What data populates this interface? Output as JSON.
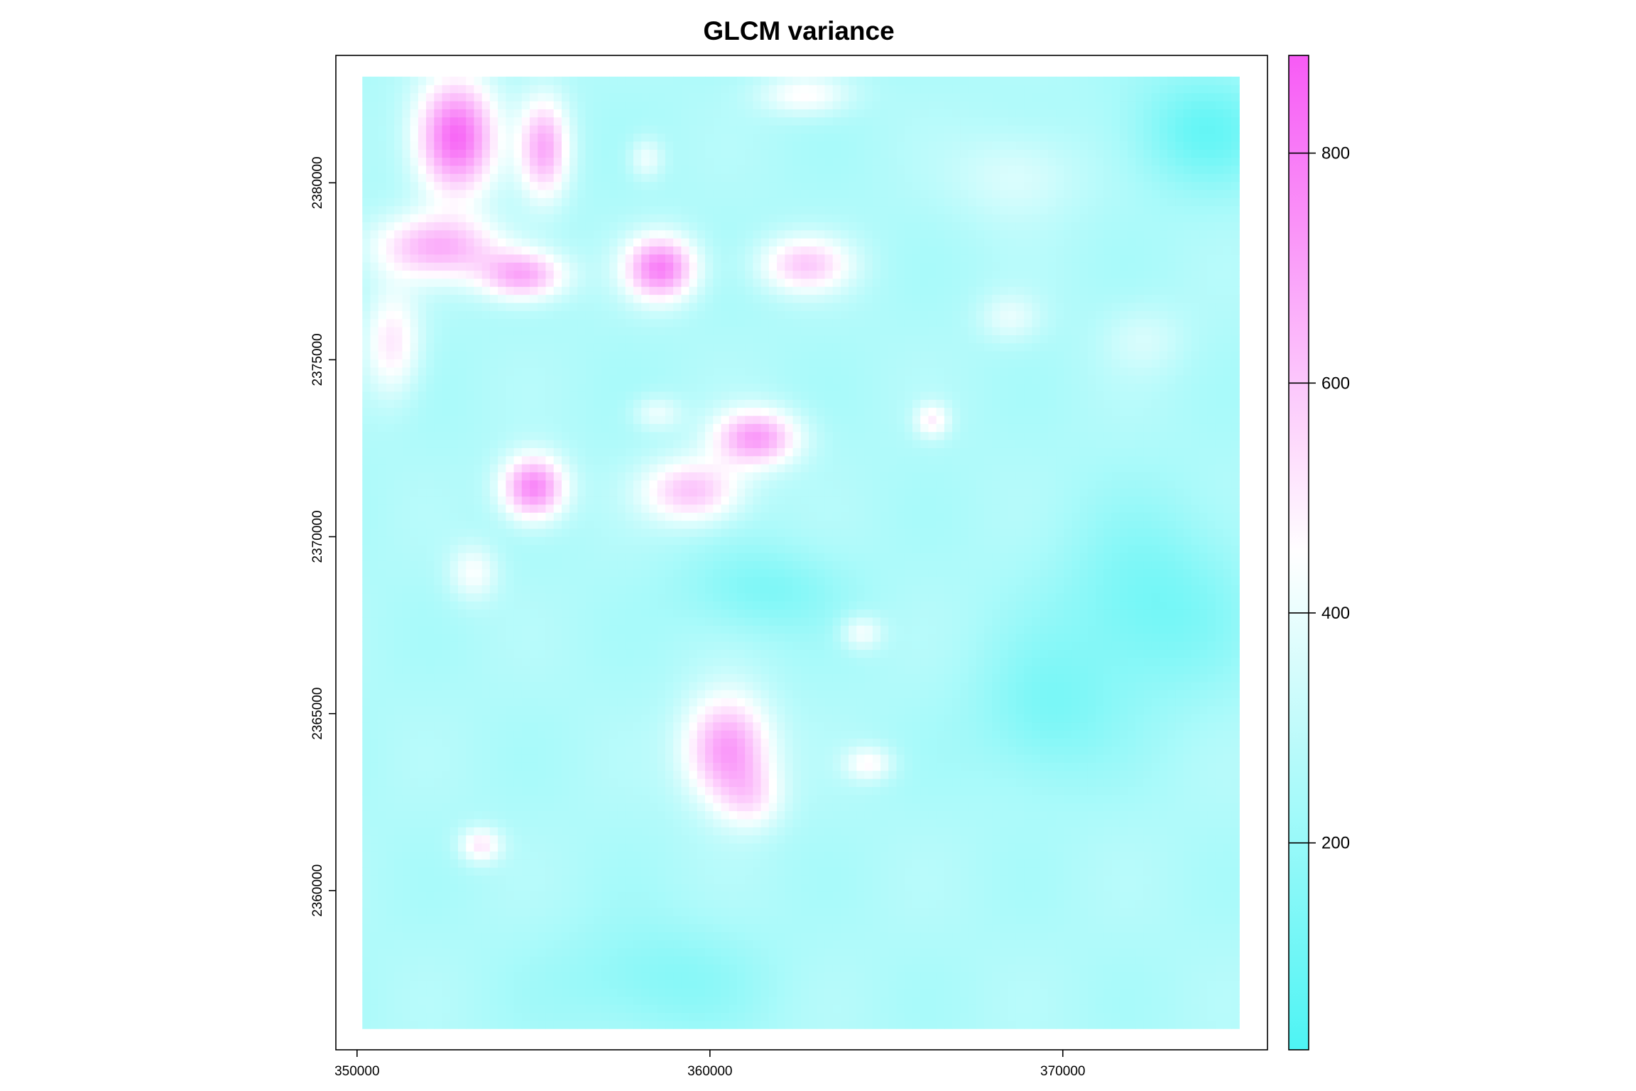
{
  "chart_data": {
    "type": "heatmap",
    "title": "GLCM variance",
    "xlabel": "",
    "ylabel": "",
    "xlim": [
      349400,
      375800
    ],
    "ylim": [
      2355500,
      2383600
    ],
    "raster_extent": {
      "x": [
        350150,
        375000
      ],
      "y": [
        2356100,
        2383000
      ]
    },
    "x_ticks": [
      350000,
      360000,
      370000
    ],
    "x_tick_labels": [
      "350000",
      "360000",
      "370000"
    ],
    "y_ticks": [
      2360000,
      2365000,
      2370000,
      2375000,
      2380000
    ],
    "y_tick_labels": [
      "2360000",
      "2365000",
      "2370000",
      "2375000",
      "2380000"
    ],
    "colorbar": {
      "range": [
        20,
        885
      ],
      "ticks": [
        200,
        400,
        600,
        800
      ],
      "tick_labels": [
        "200",
        "400",
        "600",
        "800"
      ],
      "low_color": "#4DF4F4",
      "mid_color": "#FFFFFF",
      "high_color": "#F75BF5",
      "mid_value": 450
    },
    "background_value": 260,
    "features": [
      {
        "x": 352800,
        "y": 2381300,
        "sx": 1100,
        "sy": 1600,
        "amp": 600
      },
      {
        "x": 355300,
        "y": 2381000,
        "sx": 700,
        "sy": 1400,
        "amp": 400
      },
      {
        "x": 352300,
        "y": 2378200,
        "sx": 1800,
        "sy": 900,
        "amp": 380
      },
      {
        "x": 354700,
        "y": 2377400,
        "sx": 1200,
        "sy": 700,
        "amp": 420
      },
      {
        "x": 358600,
        "y": 2377600,
        "sx": 1000,
        "sy": 900,
        "amp": 520
      },
      {
        "x": 362700,
        "y": 2377700,
        "sx": 1300,
        "sy": 800,
        "amp": 320
      },
      {
        "x": 351000,
        "y": 2375500,
        "sx": 800,
        "sy": 1500,
        "amp": 250
      },
      {
        "x": 361300,
        "y": 2372800,
        "sx": 1200,
        "sy": 800,
        "amp": 450
      },
      {
        "x": 359500,
        "y": 2371300,
        "sx": 1400,
        "sy": 900,
        "amp": 350
      },
      {
        "x": 355000,
        "y": 2371400,
        "sx": 900,
        "sy": 900,
        "amp": 520
      },
      {
        "x": 353300,
        "y": 2369000,
        "sx": 700,
        "sy": 800,
        "amp": 180
      },
      {
        "x": 358500,
        "y": 2373500,
        "sx": 700,
        "sy": 500,
        "amp": 150
      },
      {
        "x": 366300,
        "y": 2373300,
        "sx": 500,
        "sy": 500,
        "amp": 220
      },
      {
        "x": 368500,
        "y": 2376200,
        "sx": 900,
        "sy": 700,
        "amp": 130
      },
      {
        "x": 360500,
        "y": 2364000,
        "sx": 1200,
        "sy": 1500,
        "amp": 470
      },
      {
        "x": 361200,
        "y": 2362600,
        "sx": 900,
        "sy": 900,
        "amp": 180
      },
      {
        "x": 364300,
        "y": 2367300,
        "sx": 600,
        "sy": 500,
        "amp": 180
      },
      {
        "x": 364500,
        "y": 2363600,
        "sx": 700,
        "sy": 500,
        "amp": 200
      },
      {
        "x": 353500,
        "y": 2361300,
        "sx": 600,
        "sy": 500,
        "amp": 250
      },
      {
        "x": 362700,
        "y": 2382500,
        "sx": 1300,
        "sy": 600,
        "amp": 200
      },
      {
        "x": 358200,
        "y": 2380700,
        "sx": 500,
        "sy": 600,
        "amp": 160
      },
      {
        "x": 374000,
        "y": 2381500,
        "sx": 2000,
        "sy": 1600,
        "amp": -170
      },
      {
        "x": 372500,
        "y": 2368000,
        "sx": 2600,
        "sy": 2600,
        "amp": -150
      },
      {
        "x": 369500,
        "y": 2365000,
        "sx": 2000,
        "sy": 2000,
        "amp": -120
      },
      {
        "x": 361500,
        "y": 2368500,
        "sx": 2200,
        "sy": 1200,
        "amp": -120
      },
      {
        "x": 358500,
        "y": 2357500,
        "sx": 2800,
        "sy": 1600,
        "amp": -100
      },
      {
        "x": 368700,
        "y": 2380200,
        "sx": 1800,
        "sy": 1300,
        "amp": 110
      },
      {
        "x": 372300,
        "y": 2375600,
        "sx": 1200,
        "sy": 1000,
        "amp": 90
      }
    ]
  }
}
